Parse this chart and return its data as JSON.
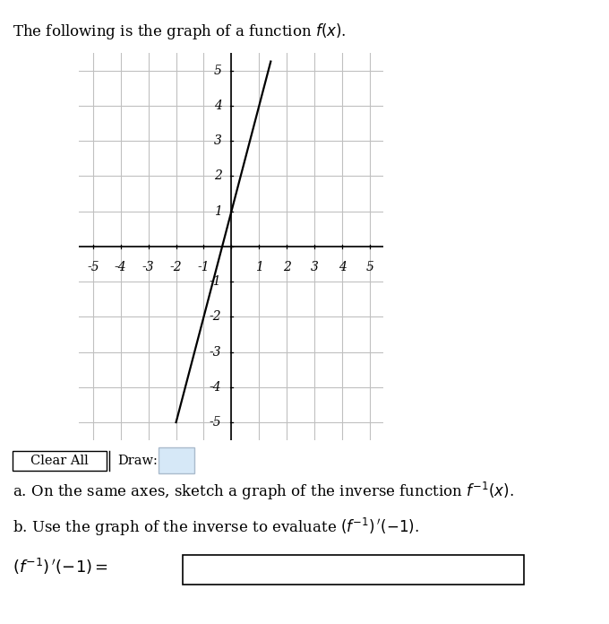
{
  "title": "The following is the graph of a function $f(x)$.",
  "title_fontsize": 12,
  "xlim": [
    -5.5,
    5.5
  ],
  "ylim": [
    -5.5,
    5.5
  ],
  "xticks": [
    -5,
    -4,
    -3,
    -2,
    -1,
    1,
    2,
    3,
    4,
    5
  ],
  "yticks": [
    -5,
    -4,
    -3,
    -2,
    -1,
    1,
    2,
    3,
    4,
    5
  ],
  "grid_color": "#c0c0c0",
  "axis_color": "#000000",
  "line_color": "#000000",
  "line_width": 1.6,
  "f_slope": 3,
  "f_intercept": 1,
  "f_x_start": -2.0,
  "f_x_end": 1.42,
  "text_a": "a. On the same axes, sketch a graph of the inverse function $f^{-1}(x)$.",
  "text_b": "b. Use the graph of the inverse to evaluate $(f^{-1})\\,'(-1)$.",
  "text_eq": "$(f^{-1})\\,'(-1) = $",
  "clear_all_label": "Clear All",
  "draw_label": "Draw:",
  "draw_icon_color": "#cc0000",
  "draw_box_color": "#d6e8f7",
  "background_color": "#ffffff",
  "text_fontsize": 12,
  "eq_fontsize": 13,
  "tick_fontsize": 10
}
